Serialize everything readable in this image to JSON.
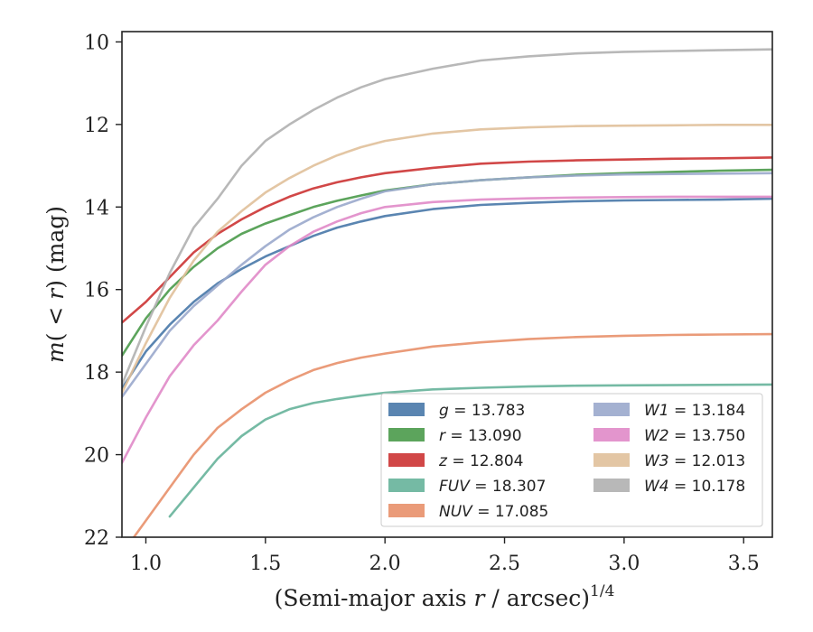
{
  "chart_data": {
    "type": "line",
    "xlabel": "(Semi-major axis r / arcsec)",
    "xlabel_main": "(Semi-major axis ",
    "xlabel_var": "r",
    "xlabel_rest": " / arcsec)",
    "xlabel_exp": "1/4",
    "ylabel_m": "m",
    "ylabel_open": "(",
    "ylabel_lt": " < ",
    "ylabel_r": "r",
    "ylabel_close": ") (mag)",
    "xlim": [
      0.9,
      3.62
    ],
    "ylim": [
      22,
      9.75
    ],
    "y_inverted": true,
    "grid": false,
    "legend_placement": "lower-right",
    "x_ticks": [
      "1.0",
      "1.5",
      "2.0",
      "2.5",
      "3.0",
      "3.5"
    ],
    "y_ticks": [
      "10",
      "12",
      "14",
      "16",
      "18",
      "20",
      "22"
    ],
    "series": [
      {
        "name": "g",
        "value_label": "13.783",
        "color": "#4878a8",
        "x": [
          0.9,
          1.0,
          1.1,
          1.2,
          1.3,
          1.4,
          1.5,
          1.6,
          1.7,
          1.8,
          1.9,
          2.0,
          2.2,
          2.4,
          2.6,
          2.8,
          3.0,
          3.2,
          3.4,
          3.62
        ],
        "y": [
          18.4,
          17.5,
          16.85,
          16.3,
          15.85,
          15.5,
          15.2,
          14.95,
          14.7,
          14.5,
          14.35,
          14.22,
          14.05,
          13.95,
          13.9,
          13.86,
          13.84,
          13.83,
          13.82,
          13.8
        ]
      },
      {
        "name": "r",
        "value_label": "13.090",
        "color": "#4a9a4a",
        "x": [
          0.9,
          1.0,
          1.1,
          1.2,
          1.3,
          1.4,
          1.5,
          1.6,
          1.7,
          1.8,
          1.9,
          2.0,
          2.2,
          2.4,
          2.6,
          2.8,
          3.0,
          3.2,
          3.4,
          3.62
        ],
        "y": [
          17.6,
          16.7,
          16.0,
          15.45,
          15.0,
          14.65,
          14.4,
          14.2,
          14.0,
          13.85,
          13.72,
          13.6,
          13.45,
          13.35,
          13.28,
          13.22,
          13.18,
          13.15,
          13.12,
          13.1
        ]
      },
      {
        "name": "z",
        "value_label": "12.804",
        "color": "#cc3333",
        "x": [
          0.9,
          1.0,
          1.1,
          1.2,
          1.3,
          1.4,
          1.5,
          1.6,
          1.7,
          1.8,
          1.9,
          2.0,
          2.2,
          2.4,
          2.6,
          2.8,
          3.0,
          3.2,
          3.4,
          3.62
        ],
        "y": [
          16.8,
          16.3,
          15.7,
          15.1,
          14.65,
          14.3,
          14.0,
          13.75,
          13.55,
          13.4,
          13.28,
          13.18,
          13.05,
          12.95,
          12.9,
          12.87,
          12.85,
          12.83,
          12.82,
          12.8
        ]
      },
      {
        "name": "FUV",
        "value_label": "18.307",
        "color": "#66b39a",
        "x": [
          1.1,
          1.2,
          1.3,
          1.4,
          1.5,
          1.6,
          1.7,
          1.8,
          1.9,
          2.0,
          2.2,
          2.4,
          2.6,
          2.8,
          3.0,
          3.62
        ],
        "y": [
          21.5,
          20.8,
          20.1,
          19.55,
          19.15,
          18.9,
          18.75,
          18.65,
          18.57,
          18.5,
          18.42,
          18.38,
          18.35,
          18.33,
          18.32,
          18.3
        ]
      },
      {
        "name": "NUV",
        "value_label": "17.085",
        "color": "#e8906a",
        "x": [
          0.95,
          1.1,
          1.2,
          1.3,
          1.4,
          1.5,
          1.6,
          1.7,
          1.8,
          1.9,
          2.0,
          2.2,
          2.4,
          2.6,
          2.8,
          3.0,
          3.2,
          3.4,
          3.62
        ],
        "y": [
          22.0,
          20.8,
          20.0,
          19.35,
          18.9,
          18.5,
          18.2,
          17.95,
          17.78,
          17.65,
          17.55,
          17.38,
          17.28,
          17.2,
          17.15,
          17.12,
          17.1,
          17.09,
          17.08
        ]
      },
      {
        "name": "W1",
        "value_label": "13.184",
        "color": "#9aa8cc",
        "x": [
          0.9,
          1.0,
          1.1,
          1.2,
          1.3,
          1.4,
          1.5,
          1.6,
          1.7,
          1.8,
          1.9,
          2.0,
          2.2,
          2.4,
          2.6,
          2.8,
          3.0,
          3.2,
          3.4,
          3.62
        ],
        "y": [
          18.6,
          17.8,
          17.0,
          16.4,
          15.9,
          15.4,
          14.95,
          14.55,
          14.25,
          14.0,
          13.8,
          13.62,
          13.45,
          13.35,
          13.28,
          13.24,
          13.21,
          13.2,
          13.19,
          13.18
        ]
      },
      {
        "name": "W2",
        "value_label": "13.750",
        "color": "#e08ac8",
        "x": [
          0.9,
          1.0,
          1.1,
          1.2,
          1.3,
          1.4,
          1.5,
          1.6,
          1.7,
          1.8,
          1.9,
          2.0,
          2.2,
          2.4,
          2.6,
          2.8,
          3.0,
          3.2,
          3.4,
          3.62
        ],
        "y": [
          20.2,
          19.1,
          18.1,
          17.35,
          16.75,
          16.05,
          15.4,
          14.95,
          14.6,
          14.35,
          14.15,
          14.0,
          13.88,
          13.82,
          13.79,
          13.77,
          13.76,
          13.75,
          13.75,
          13.75
        ]
      },
      {
        "name": "W3",
        "value_label": "12.013",
        "color": "#e0c09a",
        "x": [
          0.9,
          1.0,
          1.1,
          1.2,
          1.3,
          1.4,
          1.5,
          1.6,
          1.7,
          1.8,
          1.9,
          2.0,
          2.2,
          2.4,
          2.6,
          2.8,
          3.0,
          3.2,
          3.4,
          3.62
        ],
        "y": [
          18.5,
          17.3,
          16.2,
          15.3,
          14.6,
          14.1,
          13.65,
          13.3,
          13.0,
          12.75,
          12.55,
          12.4,
          12.22,
          12.12,
          12.07,
          12.04,
          12.03,
          12.02,
          12.01,
          12.01
        ]
      },
      {
        "name": "W4",
        "value_label": "10.178",
        "color": "#b0b0b0",
        "x": [
          0.9,
          1.0,
          1.1,
          1.2,
          1.3,
          1.4,
          1.5,
          1.6,
          1.7,
          1.8,
          1.9,
          2.0,
          2.2,
          2.4,
          2.6,
          2.8,
          3.0,
          3.2,
          3.4,
          3.62
        ],
        "y": [
          18.3,
          16.9,
          15.6,
          14.5,
          13.8,
          13.0,
          12.4,
          12.0,
          11.65,
          11.35,
          11.1,
          10.9,
          10.65,
          10.45,
          10.35,
          10.28,
          10.24,
          10.22,
          10.2,
          10.18
        ]
      }
    ],
    "legend_columns": [
      [
        "g",
        "r",
        "z",
        "FUV",
        "NUV"
      ],
      [
        "W1",
        "W2",
        "W3",
        "W4"
      ]
    ]
  }
}
